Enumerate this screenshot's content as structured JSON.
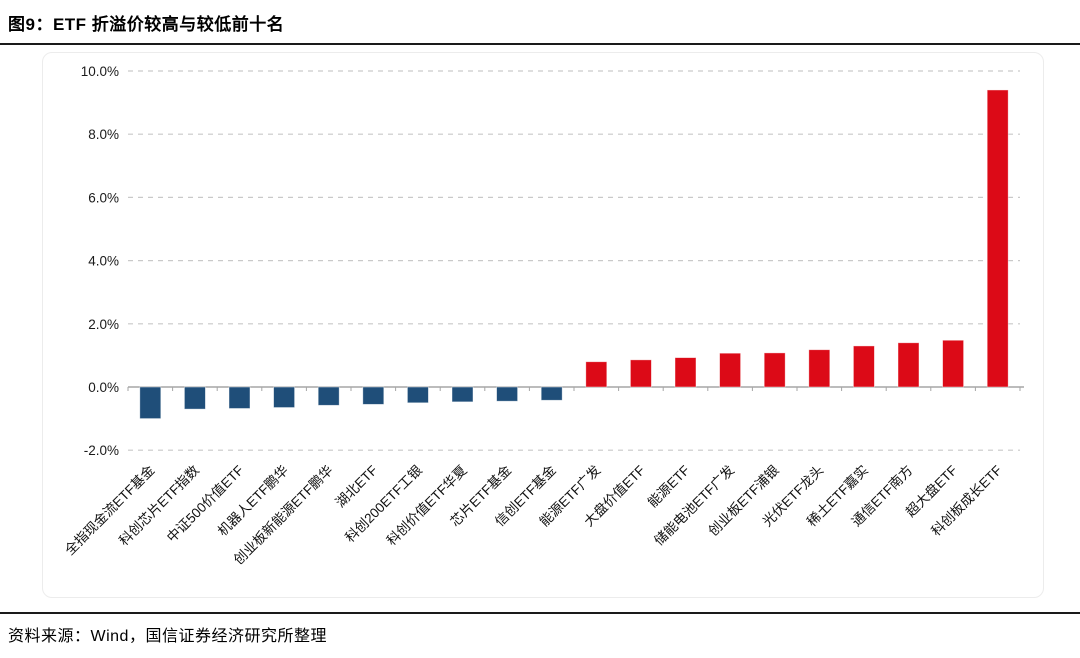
{
  "header": {
    "title": "图9：ETF 折溢价较高与较低前十名"
  },
  "footer": {
    "source": "资料来源：Wind，国信证券经济研究所整理"
  },
  "chart_data": {
    "type": "bar",
    "title": "ETF 折溢价较高与较低前十名",
    "xlabel": "",
    "ylabel": "",
    "categories": [
      "全指现金流ETF基金",
      "科创芯片ETF指数",
      "中证500价值ETF",
      "机器人ETF鹏华",
      "创业板新能源ETF鹏华",
      "湖北ETF",
      "科创200ETF工银",
      "科创价值ETF华夏",
      "芯片ETF基金",
      "信创ETF基金",
      "能源ETF广发",
      "大盘价值ETF",
      "能源ETF",
      "储能电池ETF广发",
      "创业板ETF浦银",
      "光伏ETF龙头",
      "稀土ETF嘉实",
      "通信ETF南方",
      "超大盘ETF",
      "科创板成长ETF"
    ],
    "values": [
      -1.0,
      -0.7,
      -0.68,
      -0.65,
      -0.58,
      -0.55,
      -0.5,
      -0.47,
      -0.45,
      -0.42,
      0.8,
      0.86,
      0.93,
      1.07,
      1.08,
      1.18,
      1.3,
      1.4,
      1.48,
      9.4
    ],
    "unit": "%",
    "ylim": [
      -2,
      10
    ],
    "yticks": [
      10,
      8,
      6,
      4,
      2,
      0,
      -2
    ],
    "ytick_labels": [
      "10.0%",
      "8.0%",
      "6.0%",
      "4.0%",
      "2.0%",
      "0.0%",
      "-2.0%"
    ],
    "grid": "horizontal-dashed",
    "legend_position": "none",
    "positive_color": "#DC0A17",
    "negative_color": "#1F4E79",
    "gridline_color": "#c9c9c9",
    "axis_color": "#a6a6a6",
    "tick_label_color": "#1a1a1a"
  }
}
